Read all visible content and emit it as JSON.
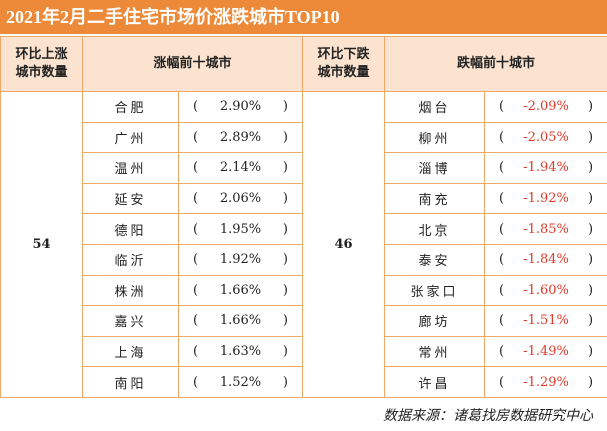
{
  "title": "2021年2月二手住宅市场价涨跌城市TOP10",
  "headers": {
    "up_count_label": "环比上涨\n城市数量",
    "up_top_label": "涨幅前十城市",
    "down_count_label": "环比下跌\n城市数量",
    "down_top_label": "跌幅前十城市"
  },
  "up_count": "54",
  "down_count": "46",
  "paren_open": "(",
  "paren_close": ")",
  "rows": [
    {
      "up_city": "合肥",
      "up_pct": "2.90%",
      "down_city": "烟台",
      "down_pct": "-2.09%"
    },
    {
      "up_city": "广州",
      "up_pct": "2.89%",
      "down_city": "柳州",
      "down_pct": "-2.05%"
    },
    {
      "up_city": "温州",
      "up_pct": "2.14%",
      "down_city": "淄博",
      "down_pct": "-1.94%"
    },
    {
      "up_city": "延安",
      "up_pct": "2.06%",
      "down_city": "南充",
      "down_pct": "-1.92%"
    },
    {
      "up_city": "德阳",
      "up_pct": "1.95%",
      "down_city": "北京",
      "down_pct": "-1.85%"
    },
    {
      "up_city": "临沂",
      "up_pct": "1.92%",
      "down_city": "泰安",
      "down_pct": "-1.84%"
    },
    {
      "up_city": "株洲",
      "up_pct": "1.66%",
      "down_city": "张家口",
      "down_pct": "-1.60%"
    },
    {
      "up_city": "嘉兴",
      "up_pct": "1.66%",
      "down_city": "廊坊",
      "down_pct": "-1.51%"
    },
    {
      "up_city": "上海",
      "up_pct": "1.63%",
      "down_city": "常州",
      "down_pct": "-1.49%"
    },
    {
      "up_city": "南阳",
      "up_pct": "1.52%",
      "down_city": "许昌",
      "down_pct": "-1.29%"
    }
  ],
  "source": "数据来源：诸葛找房数据研究中心",
  "colors": {
    "accent": "#ec8a3a",
    "header_bg": "#fbe3cf",
    "border": "#f0a868",
    "negative": "#e03a2a"
  }
}
